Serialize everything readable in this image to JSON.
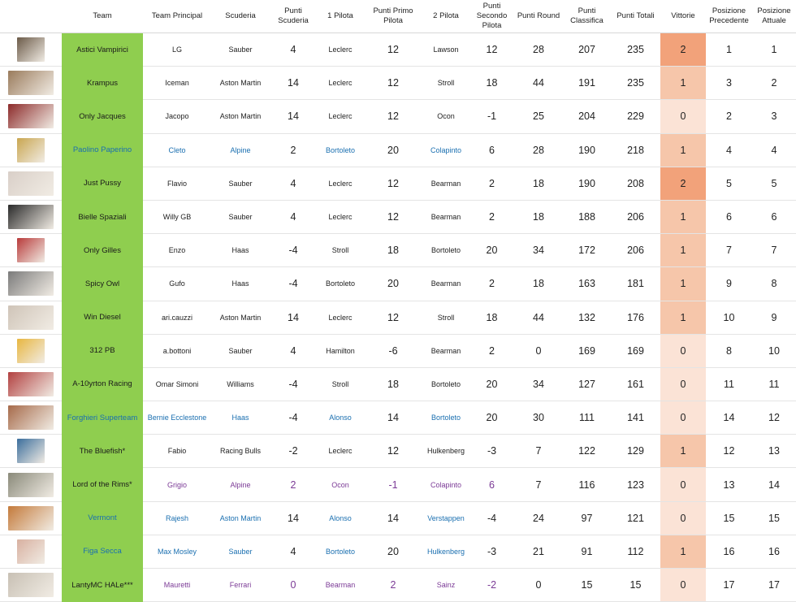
{
  "headers": {
    "team": "Team",
    "principal": "Team Principal",
    "scuderia": "Scuderia",
    "punti_scuderia": "Punti Scuderia",
    "pilota1": "1 Pilota",
    "punti_primo": "Punti Primo Pilota",
    "pilota2": "2 Pilota",
    "punti_secondo": "Punti Secondo Pilota",
    "punti_round": "Punti Round",
    "punti_classifica": "Punti Classifica",
    "punti_totali": "Punti Totali",
    "vittorie": "Vittorie",
    "pos_prec": "Posizione Precedente",
    "pos_att": "Posizione Attuale"
  },
  "colors": {
    "team_cell": "#8fce4f",
    "vittorie_2": "#f2a27a",
    "vittorie_1": "#f6c6aa",
    "vittorie_0": "#fbe3d6",
    "blue_text": "#1a6fb0",
    "purple_text": "#7b3a96"
  },
  "rows": [
    {
      "team": "Astici Vampirici",
      "principal": "LG",
      "scuderia": "Sauber",
      "punti_scuderia": "4",
      "pilota1": "Leclerc",
      "punti_primo": "12",
      "pilota2": "Lawson",
      "punti_secondo": "12",
      "punti_round": "28",
      "punti_classifica": "207",
      "punti_totali": "235",
      "vittorie": "2",
      "pos_prec": "1",
      "pos_att": "1",
      "thumb": "portrait-icon"
    },
    {
      "team": "Krampus",
      "principal": "Iceman",
      "scuderia": "Aston Martin",
      "punti_scuderia": "14",
      "pilota1": "Leclerc",
      "punti_primo": "12",
      "pilota2": "Stroll",
      "punti_secondo": "18",
      "punti_round": "44",
      "punti_classifica": "191",
      "punti_totali": "235",
      "vittorie": "1",
      "pos_prec": "3",
      "pos_att": "2",
      "thumb": "group-photo-icon"
    },
    {
      "team": "Only Jacques",
      "principal": "Jacopo",
      "scuderia": "Aston Martin",
      "punti_scuderia": "14",
      "pilota1": "Leclerc",
      "punti_primo": "12",
      "pilota2": "Ocon",
      "punti_secondo": "-1",
      "punti_round": "25",
      "punti_classifica": "204",
      "punti_totali": "229",
      "vittorie": "0",
      "pos_prec": "2",
      "pos_att": "3",
      "thumb": "race-car-icon"
    },
    {
      "team": "Paolino Paperino",
      "principal": "Cleto",
      "scuderia": "Alpine",
      "punti_scuderia": "2",
      "pilota1": "Bortoleto",
      "punti_primo": "20",
      "pilota2": "Colapinto",
      "punti_secondo": "6",
      "punti_round": "28",
      "punti_classifica": "190",
      "punti_totali": "218",
      "vittorie": "1",
      "pos_prec": "4",
      "pos_att": "4",
      "thumb": "cartoon-icon"
    },
    {
      "team": "Just Pussy",
      "principal": "Flavio",
      "scuderia": "Sauber",
      "punti_scuderia": "4",
      "pilota1": "Leclerc",
      "punti_primo": "12",
      "pilota2": "Bearman",
      "punti_secondo": "2",
      "punti_round": "18",
      "punti_classifica": "190",
      "punti_totali": "208",
      "vittorie": "2",
      "pos_prec": "5",
      "pos_att": "5",
      "thumb": "group-photo-icon"
    },
    {
      "team": "Bielle Spaziali",
      "principal": "Willy GB",
      "scuderia": "Sauber",
      "punti_scuderia": "4",
      "pilota1": "Leclerc",
      "punti_primo": "12",
      "pilota2": "Bearman",
      "punti_secondo": "2",
      "punti_round": "18",
      "punti_classifica": "188",
      "punti_totali": "206",
      "vittorie": "1",
      "pos_prec": "6",
      "pos_att": "6",
      "thumb": "meme-icon"
    },
    {
      "team": "Only Gilles",
      "principal": "Enzo",
      "scuderia": "Haas",
      "punti_scuderia": "-4",
      "pilota1": "Stroll",
      "punti_primo": "18",
      "pilota2": "Bortoleto",
      "punti_secondo": "20",
      "punti_round": "34",
      "punti_classifica": "172",
      "punti_totali": "206",
      "vittorie": "1",
      "pos_prec": "7",
      "pos_att": "7",
      "thumb": "race-car-icon"
    },
    {
      "team": "Spicy Owl",
      "principal": "Gufo",
      "scuderia": "Haas",
      "punti_scuderia": "-4",
      "pilota1": "Bortoleto",
      "punti_primo": "20",
      "pilota2": "Bearman",
      "punti_secondo": "2",
      "punti_round": "18",
      "punti_classifica": "163",
      "punti_totali": "181",
      "vittorie": "1",
      "pos_prec": "9",
      "pos_att": "8",
      "thumb": "owl-icon"
    },
    {
      "team": "Win Diesel",
      "principal": "ari.cauzzi",
      "scuderia": "Aston Martin",
      "punti_scuderia": "14",
      "pilota1": "Leclerc",
      "punti_primo": "12",
      "pilota2": "Stroll",
      "punti_secondo": "18",
      "punti_round": "44",
      "punti_classifica": "132",
      "punti_totali": "176",
      "vittorie": "1",
      "pos_prec": "10",
      "pos_att": "9",
      "thumb": "portrait-icon"
    },
    {
      "team": "312 PB",
      "principal": "a.bottoni",
      "scuderia": "Sauber",
      "punti_scuderia": "4",
      "pilota1": "Hamilton",
      "punti_primo": "-6",
      "pilota2": "Bearman",
      "punti_secondo": "2",
      "punti_round": "0",
      "punti_classifica": "169",
      "punti_totali": "169",
      "vittorie": "0",
      "pos_prec": "8",
      "pos_att": "10",
      "thumb": "cartoon-icon"
    },
    {
      "team": "A-10yrton Racing",
      "principal": "Omar Simoni",
      "scuderia": "Williams",
      "punti_scuderia": "-4",
      "pilota1": "Stroll",
      "punti_primo": "18",
      "pilota2": "Bortoleto",
      "punti_secondo": "20",
      "punti_round": "34",
      "punti_classifica": "127",
      "punti_totali": "161",
      "vittorie": "0",
      "pos_prec": "11",
      "pos_att": "11",
      "thumb": "race-car-icon"
    },
    {
      "team": "Forghieri Superteam",
      "principal": "Bernie Ecclestone",
      "scuderia": "Haas",
      "punti_scuderia": "-4",
      "pilota1": "Alonso",
      "punti_primo": "14",
      "pilota2": "Bortoleto",
      "punti_secondo": "20",
      "punti_round": "30",
      "punti_classifica": "111",
      "punti_totali": "141",
      "vittorie": "0",
      "pos_prec": "14",
      "pos_att": "12",
      "thumb": "group-photo-icon"
    },
    {
      "team": "The Bluefish*",
      "principal": "Fabio",
      "scuderia": "Racing Bulls",
      "punti_scuderia": "-2",
      "pilota1": "Leclerc",
      "punti_primo": "12",
      "pilota2": "Hulkenberg",
      "punti_secondo": "-3",
      "punti_round": "7",
      "punti_classifica": "122",
      "punti_totali": "129",
      "vittorie": "1",
      "pos_prec": "12",
      "pos_att": "13",
      "thumb": "shark-icon"
    },
    {
      "team": "Lord of the Rims*",
      "principal": "Grigio",
      "scuderia": "Alpine",
      "punti_scuderia": "2",
      "pilota1": "Ocon",
      "punti_primo": "-1",
      "pilota2": "Colapinto",
      "punti_secondo": "6",
      "punti_round": "7",
      "punti_classifica": "116",
      "punti_totali": "123",
      "vittorie": "0",
      "pos_prec": "13",
      "pos_att": "14",
      "thumb": "wizard-icon"
    },
    {
      "team": "Vermont",
      "principal": "Rajesh",
      "scuderia": "Aston Martin",
      "punti_scuderia": "14",
      "pilota1": "Alonso",
      "punti_primo": "14",
      "pilota2": "Verstappen",
      "punti_secondo": "-4",
      "punti_round": "24",
      "punti_classifica": "97",
      "punti_totali": "121",
      "vittorie": "0",
      "pos_prec": "15",
      "pos_att": "15",
      "thumb": "crowd-icon"
    },
    {
      "team": "Figa Secca",
      "principal": "Max Mosley",
      "scuderia": "Sauber",
      "punti_scuderia": "4",
      "pilota1": "Bortoleto",
      "punti_primo": "20",
      "pilota2": "Hulkenberg",
      "punti_secondo": "-3",
      "punti_round": "21",
      "punti_classifica": "91",
      "punti_totali": "112",
      "vittorie": "1",
      "pos_prec": "16",
      "pos_att": "16",
      "thumb": "portrait-icon"
    },
    {
      "team": "LantyMC HALe***",
      "principal": "Mauretti",
      "scuderia": "Ferrari",
      "punti_scuderia": "0",
      "pilota1": "Bearman",
      "punti_primo": "2",
      "pilota2": "Sainz",
      "punti_secondo": "-2",
      "punti_round": "0",
      "punti_classifica": "15",
      "punti_totali": "15",
      "vittorie": "0",
      "pos_prec": "17",
      "pos_att": "17",
      "thumb": "dog-icon"
    }
  ]
}
